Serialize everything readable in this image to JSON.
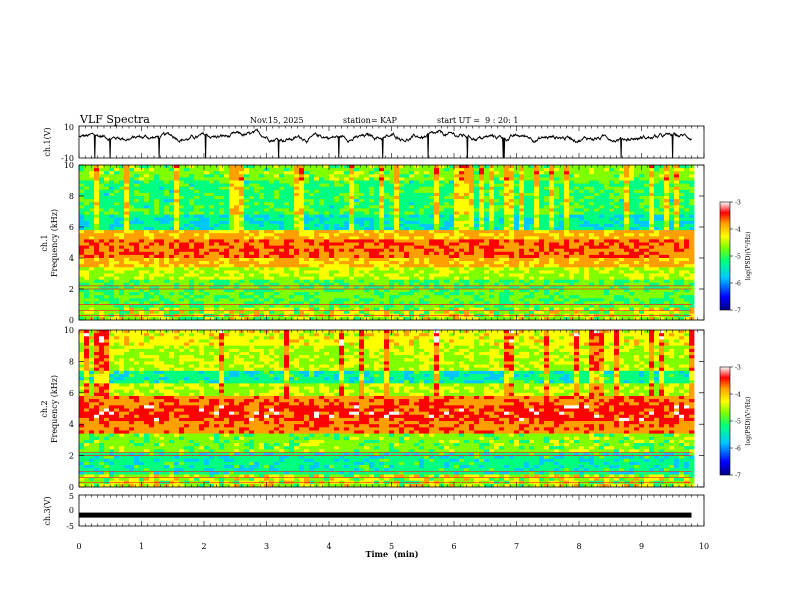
{
  "header": {
    "title": "VLF Spectra",
    "date": "Nov.15, 2025",
    "station": "station= KAP",
    "start": "start UT =  9 : 20: 1"
  },
  "colors": {
    "scale": [
      "#000080",
      "#0000ff",
      "#00c8ff",
      "#00ff80",
      "#80ff00",
      "#ffff00",
      "#ffa000",
      "#ff0000",
      "#ffffff"
    ],
    "waveform": "#000000",
    "ch3_bar": "#000000"
  },
  "chart_data": [
    {
      "type": "line",
      "id": "ch1-waveform",
      "ylabel": "ch.1(V)",
      "ylim": [
        -10,
        10
      ],
      "yticks": [
        "10",
        "-10"
      ],
      "xlim": [
        0,
        10
      ],
      "description_note": "continuous noisy waveform near +3 V"
    },
    {
      "type": "heatmap",
      "id": "ch1-spectrogram",
      "ylabel_channel": "ch.1",
      "ylabel": "Frequency (kHz)",
      "ylim": [
        0,
        10
      ],
      "yticks": [
        "0",
        "2",
        "4",
        "6",
        "8",
        "10"
      ],
      "xlim": [
        0,
        10
      ],
      "colorbar": {
        "label": "log(PSD)(V²/Hz)",
        "range": [
          -7,
          -3
        ],
        "ticks": [
          "-3",
          "-4",
          "-5",
          "-6",
          "-7"
        ]
      }
    },
    {
      "type": "heatmap",
      "id": "ch2-spectrogram",
      "ylabel_channel": "ch.2",
      "ylabel": "Frequency (kHz)",
      "ylim": [
        0,
        10
      ],
      "yticks": [
        "0",
        "2",
        "4",
        "6",
        "8",
        "10"
      ],
      "xlim": [
        0,
        10
      ],
      "colorbar": {
        "label": "log(PSD)(V²/Hz)",
        "range": [
          -7,
          -3
        ],
        "ticks": [
          "-3",
          "-4",
          "-5",
          "-6",
          "-7"
        ]
      }
    },
    {
      "type": "line",
      "id": "ch3-level",
      "ylabel": "ch.3(V)",
      "ylim": [
        -5,
        5
      ],
      "yticks": [
        "5",
        "0",
        "-5"
      ],
      "level": -1.5,
      "xlim": [
        0,
        9.8
      ]
    }
  ],
  "xaxis": {
    "label": "Time  (min)",
    "ticks": [
      "0",
      "1",
      "2",
      "3",
      "4",
      "5",
      "6",
      "7",
      "8",
      "9",
      "10"
    ]
  }
}
